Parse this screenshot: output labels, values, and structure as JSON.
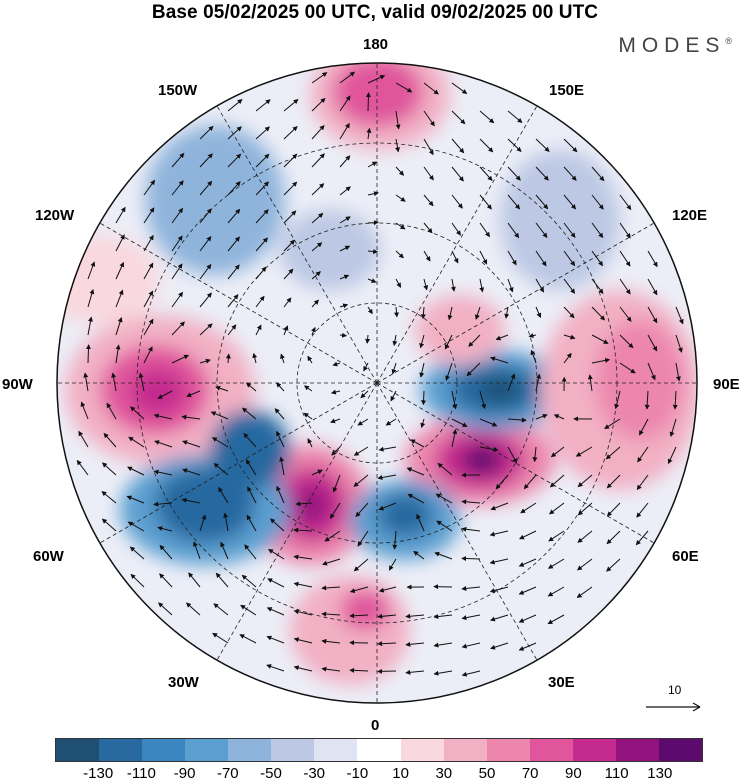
{
  "title": "Base 05/02/2025 00 UTC, valid 09/02/2025 00 UTC",
  "brand": "MODES",
  "brand_mark": "®",
  "longitude_labels": {
    "top": "180",
    "top_left": "150W",
    "top_right": "150E",
    "upper_left": "120W",
    "upper_right": "120E",
    "left": "90W",
    "right": "90E",
    "lower_left": "60W",
    "lower_right": "60E",
    "bottom_left": "30W",
    "bottom_right": "30E",
    "bottom": "0"
  },
  "vector_key": "10",
  "colorbar": {
    "colors": [
      "#1f4f72",
      "#2869a0",
      "#3b86c0",
      "#5b9fd0",
      "#8fb4dc",
      "#bcc8e4",
      "#dfe3f2",
      "#ffffff",
      "#f9d8df",
      "#f2b0c4",
      "#ec86ad",
      "#e0559c",
      "#c52a8f",
      "#92137e",
      "#5d0a6e"
    ],
    "ticks": [
      "-130",
      "-110",
      "-90",
      "-70",
      "-50",
      "-30",
      "-10",
      "10",
      "30",
      "50",
      "70",
      "90",
      "110",
      "130"
    ]
  },
  "map_features": {
    "projection": "north-polar-stereographic",
    "field": "anomaly",
    "icons": [
      "wind-vector-arrows",
      "coastlines",
      "lat-lon-grid"
    ]
  }
}
